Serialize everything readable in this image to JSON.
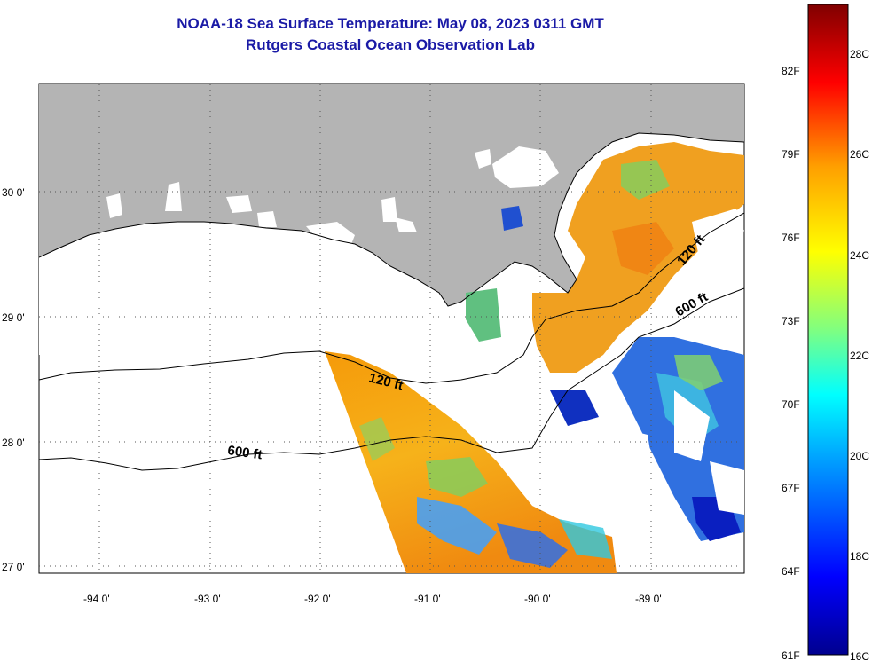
{
  "title": {
    "line1": "NOAA-18 Sea Surface Temperature:  May 08, 2023 0311 GMT",
    "line2": "Rutgers Coastal Ocean Observation Lab"
  },
  "map": {
    "lat_labels": [
      "30 0'",
      "29 0'",
      "28 0'",
      "27 0'"
    ],
    "lon_labels": [
      "-94 0'",
      "-93 0'",
      "-92 0'",
      "-91 0'",
      "-90 0'",
      "-89 0'"
    ],
    "contour_labels": [
      "120 ft",
      "600 ft",
      "120 ft",
      "600 ft"
    ],
    "colors": {
      "land": "#b4b4b4",
      "ocean_nodata": "#ffffff"
    }
  },
  "colorbar": {
    "f_labels": [
      "82F",
      "79F",
      "76F",
      "73F",
      "70F",
      "67F",
      "64F",
      "61F"
    ],
    "c_labels": [
      "28C",
      "26C",
      "24C",
      "22C",
      "20C",
      "18C",
      "16C"
    ],
    "colors": [
      "#00008f",
      "#0000ff",
      "#00a0ff",
      "#00ffff",
      "#80ff80",
      "#ffff00",
      "#ffa000",
      "#ff0000",
      "#800000"
    ]
  }
}
